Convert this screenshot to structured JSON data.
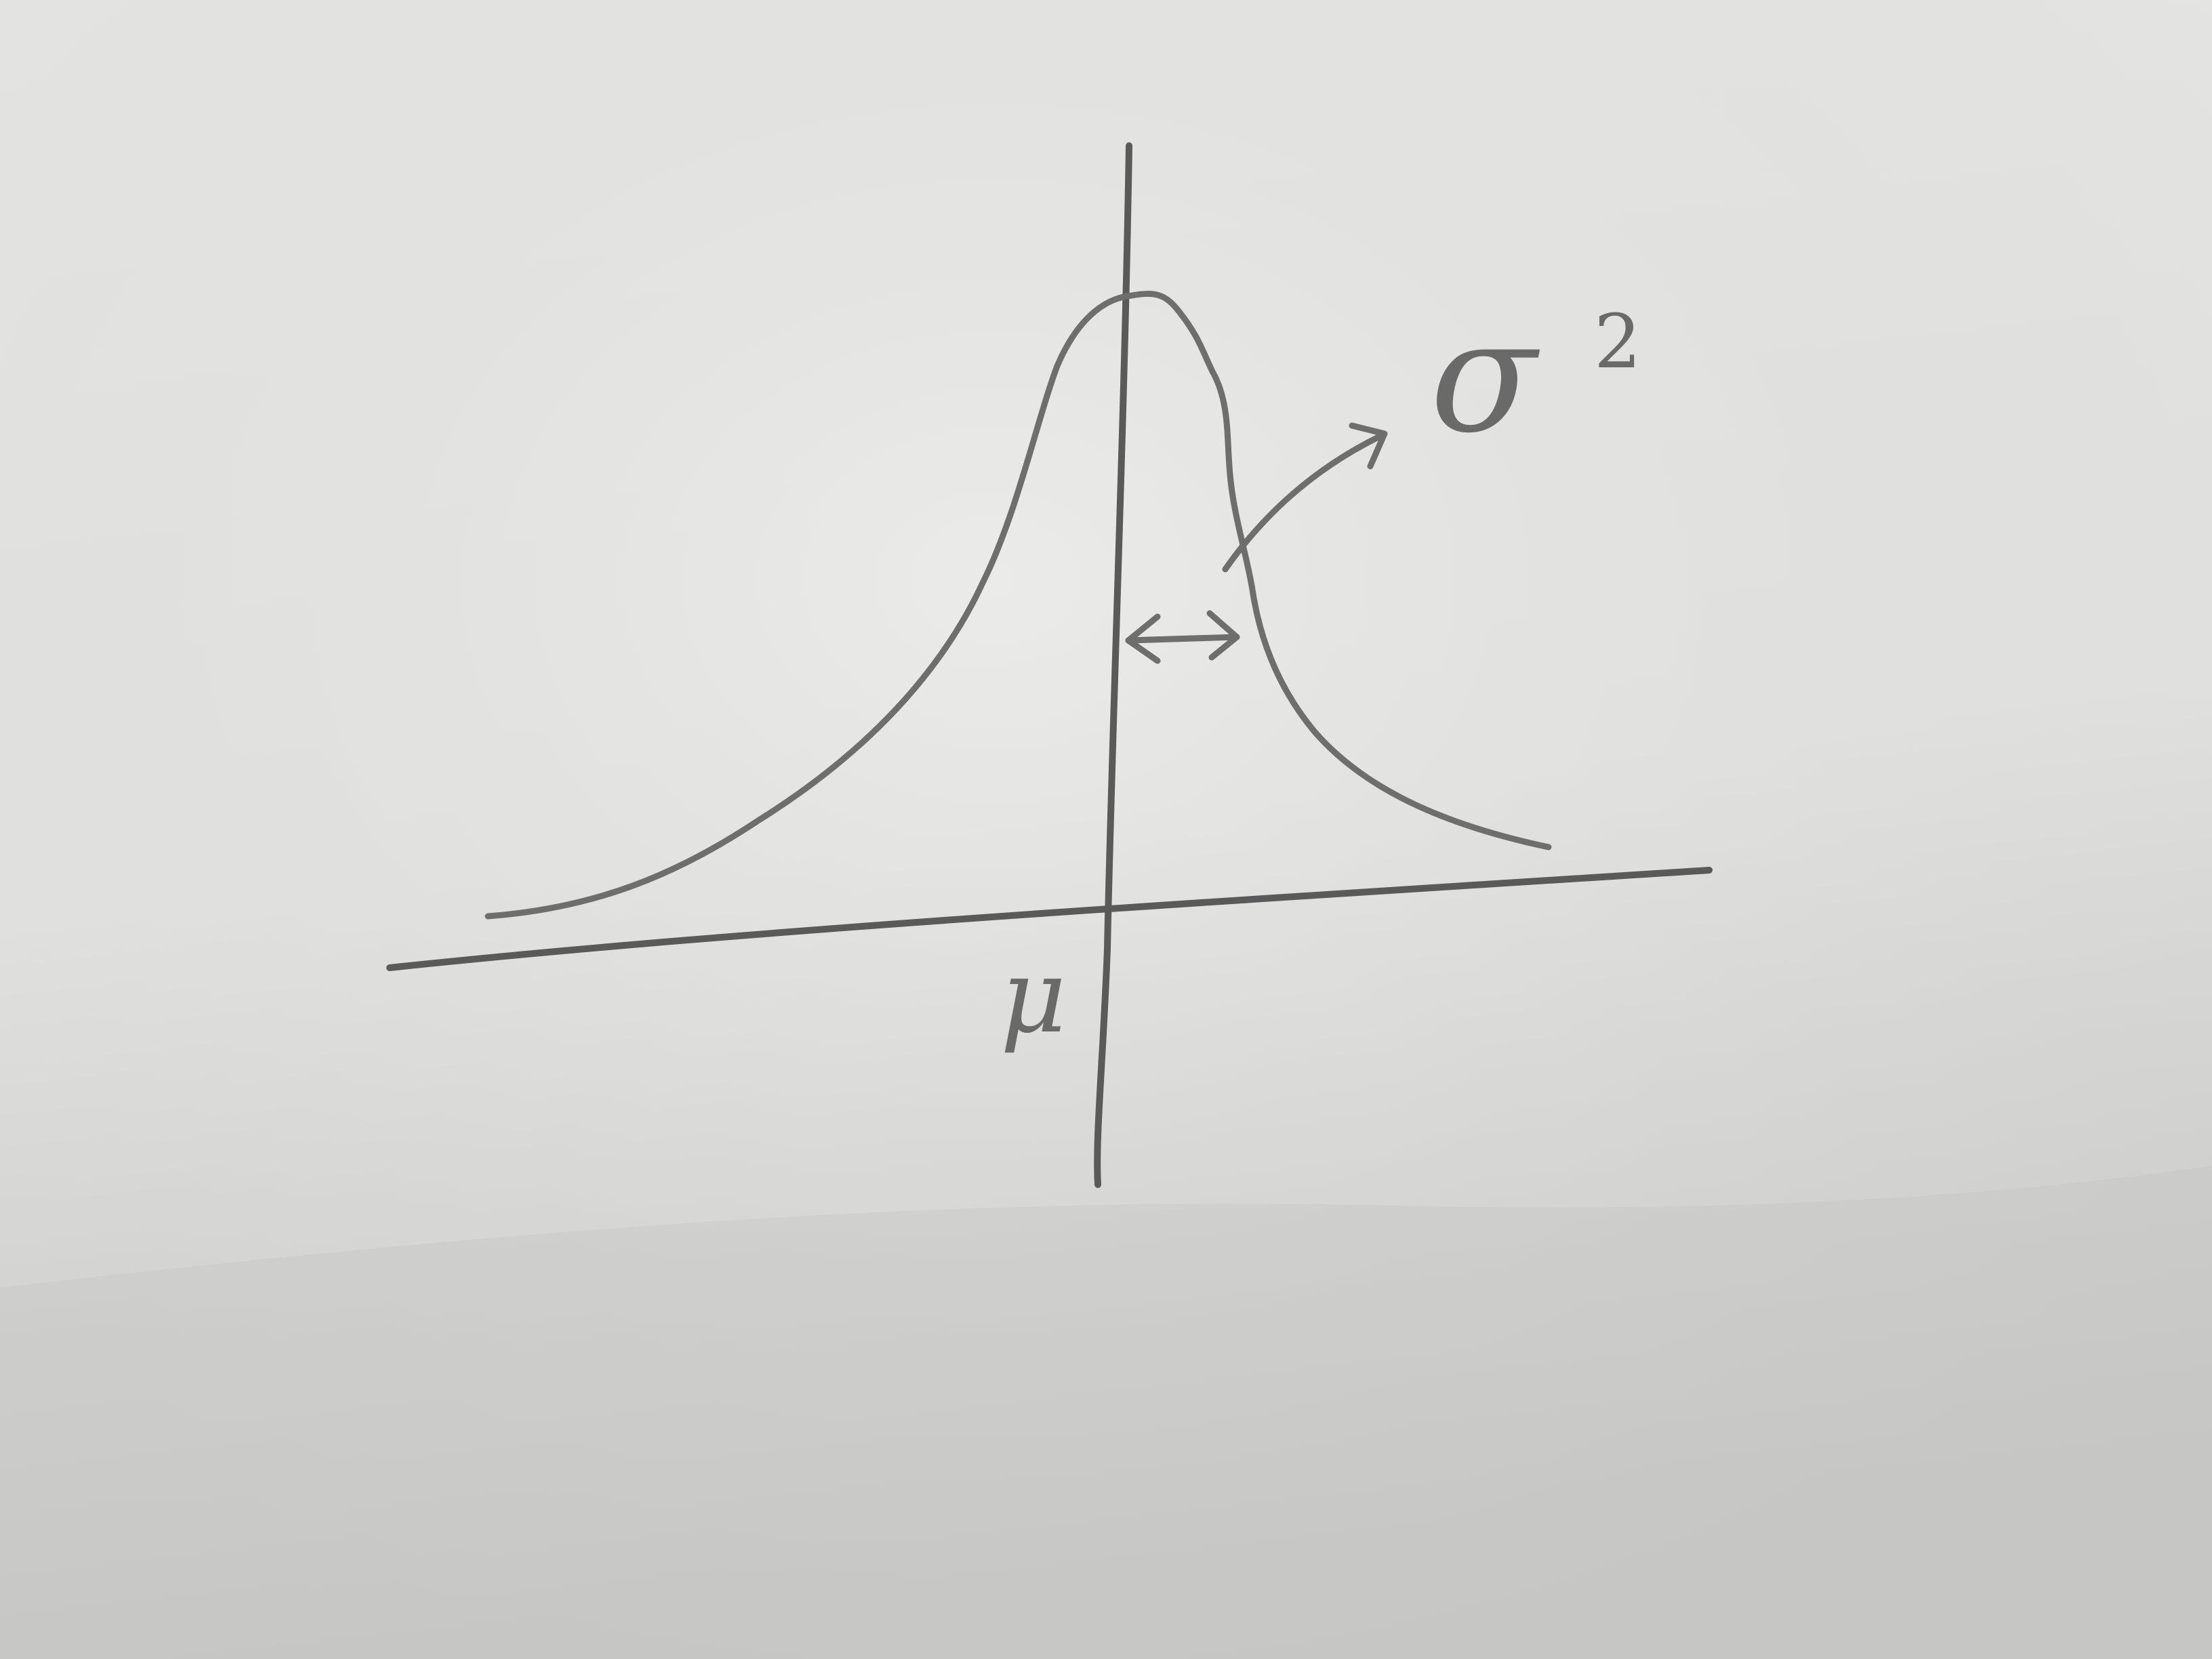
{
  "diagram": {
    "type": "hand-drawn bell curve sketch on paper",
    "labels": {
      "mu": "μ",
      "sigma_base": "σ",
      "sigma_exponent": "2"
    },
    "colors": {
      "paper": "#e4e4e2",
      "paper_shadow": "#c9c9c7",
      "pencil": "#6e6e6e"
    }
  }
}
